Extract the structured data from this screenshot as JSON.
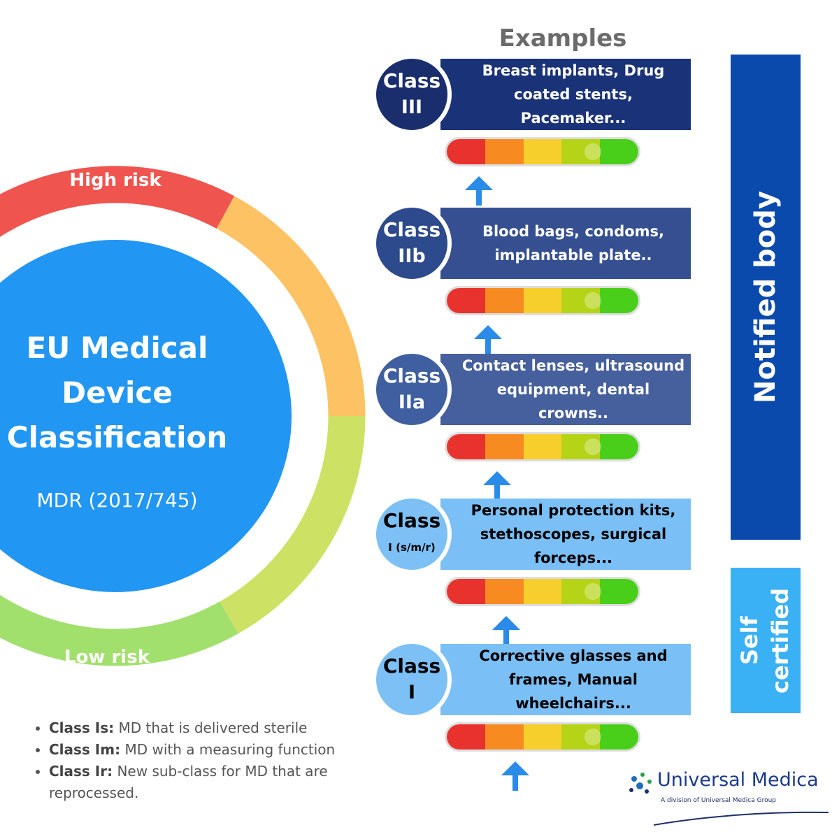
{
  "header": {
    "title": "Examples"
  },
  "overview": {
    "title": "EU Medical Device Classification",
    "subtitle": "MDR (2017/745)",
    "high_risk": "High risk",
    "low_risk": "Low risk"
  },
  "classes": [
    {
      "name": "Class",
      "grade": "III",
      "examples": "Breast implants, Drug coated stents, Pacemaker..."
    },
    {
      "name": "Class",
      "grade": "IIb",
      "examples": "Blood bags, condoms, implantable plate.."
    },
    {
      "name": "Class",
      "grade": "IIa",
      "examples": "Contact lenses, ultrasound equipment, dental crowns.."
    },
    {
      "name": "Class",
      "grade": "I (s/m/r)",
      "examples": "Personal protection kits, stethoscopes, surgical forceps..."
    },
    {
      "name": "Class",
      "grade": "I",
      "examples": "Corrective glasses and frames, Manual wheelchairs..."
    }
  ],
  "bodies": {
    "notified": "Notified body",
    "self": "Self certified"
  },
  "notes": [
    {
      "term": "Class Is:",
      "text": "MD that is delivered sterile"
    },
    {
      "term": "Class Im:",
      "text": "MD with a measuring function"
    },
    {
      "term": "Class Ir:",
      "text": "New sub-class for MD that are reprocessed."
    }
  ],
  "logo": {
    "name": "Universal Medica",
    "tagline": "A division of Universal Medica Group"
  }
}
